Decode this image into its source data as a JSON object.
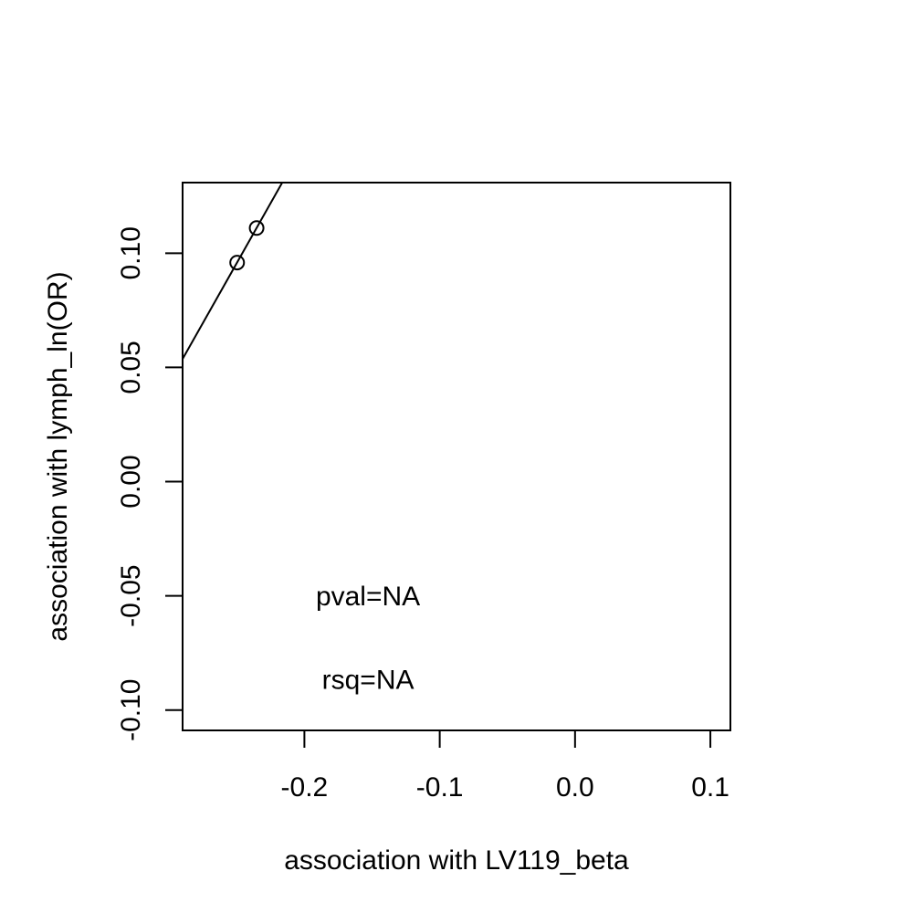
{
  "chart_data": {
    "type": "scatter",
    "xlabel": "association with LV119_beta",
    "ylabel": "association with lymph_ln(OR)",
    "xlim": [
      -0.29,
      0.1148
    ],
    "ylim": [
      -0.1089,
      0.1309
    ],
    "x_ticks": [
      -0.2,
      -0.1,
      0.0,
      0.1
    ],
    "x_tick_labels": [
      "-0.2",
      "-0.1",
      "0.0",
      "0.1"
    ],
    "y_ticks": [
      -0.1,
      -0.05,
      0.0,
      0.05,
      0.1
    ],
    "y_tick_labels": [
      "-0.10",
      "-0.05",
      "0.00",
      "0.05",
      "0.10"
    ],
    "points": [
      {
        "x": -0.2497,
        "y": 0.0959
      },
      {
        "x": -0.2353,
        "y": 0.111
      }
    ],
    "fit_line": {
      "slope": 1.0486,
      "intercept": 0.3578
    },
    "annotations": [
      {
        "text": "pval=NA",
        "x": -0.153,
        "y": -0.0509
      },
      {
        "text": "rsq=NA",
        "x": -0.153,
        "y": -0.0876
      }
    ],
    "grid": false,
    "legend": "none",
    "colors": {
      "marks": "#000000",
      "background": "#ffffff"
    }
  }
}
